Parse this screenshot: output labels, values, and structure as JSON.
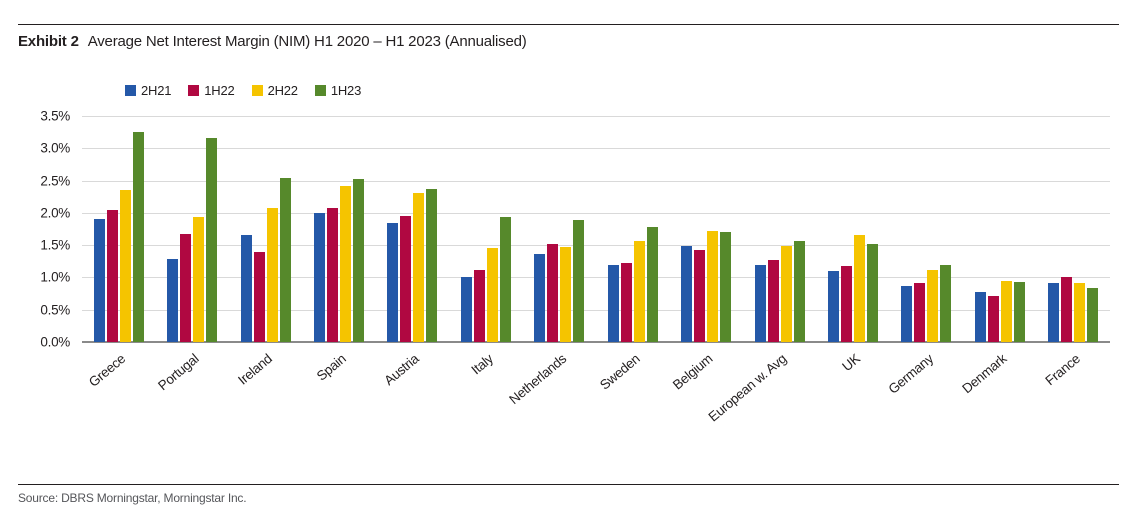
{
  "header": {
    "exhibit_label": "Exhibit 2",
    "title": "Average Net Interest Margin (NIM) H1 2020 – H1 2023 (Annualised)"
  },
  "chart_data": {
    "type": "bar",
    "title": "Average Net Interest Margin (NIM) H1 2020 – H1 2023 (Annualised)",
    "categories": [
      "Greece",
      "Portugal",
      "Ireland",
      "Spain",
      "Austria",
      "Italy",
      "Netherlands",
      "Sweden",
      "Belgium",
      "European w. Avg",
      "UK",
      "Germany",
      "Denmark",
      "France"
    ],
    "series": [
      {
        "name": "2H21",
        "color": "#2458a8",
        "values": [
          1.9,
          1.28,
          1.66,
          2.0,
          1.85,
          1.01,
          1.37,
          1.19,
          1.48,
          1.2,
          1.1,
          0.87,
          0.78,
          0.92
        ]
      },
      {
        "name": "1H22",
        "color": "#b00841",
        "values": [
          2.05,
          1.68,
          1.4,
          2.07,
          1.95,
          1.11,
          1.52,
          1.23,
          1.43,
          1.27,
          1.18,
          0.91,
          0.72,
          1.0
        ]
      },
      {
        "name": "2H22",
        "color": "#f5c400",
        "values": [
          2.36,
          1.93,
          2.07,
          2.42,
          2.31,
          1.45,
          1.47,
          1.57,
          1.72,
          1.48,
          1.66,
          1.12,
          0.94,
          0.91
        ]
      },
      {
        "name": "1H23",
        "color": "#56892b",
        "values": [
          3.25,
          3.16,
          2.54,
          2.52,
          2.37,
          1.93,
          1.89,
          1.78,
          1.71,
          1.56,
          1.52,
          1.2,
          0.93,
          0.83
        ]
      }
    ],
    "xlabel": "",
    "ylabel": "",
    "y_ticks": [
      "0.0%",
      "0.5%",
      "1.0%",
      "1.5%",
      "2.0%",
      "2.5%",
      "3.0%",
      "3.5%"
    ],
    "ylim": [
      0,
      3.5
    ],
    "grid": true,
    "legend_position": "top"
  },
  "footer": {
    "source": "Source: DBRS Morningstar, Morningstar Inc."
  }
}
